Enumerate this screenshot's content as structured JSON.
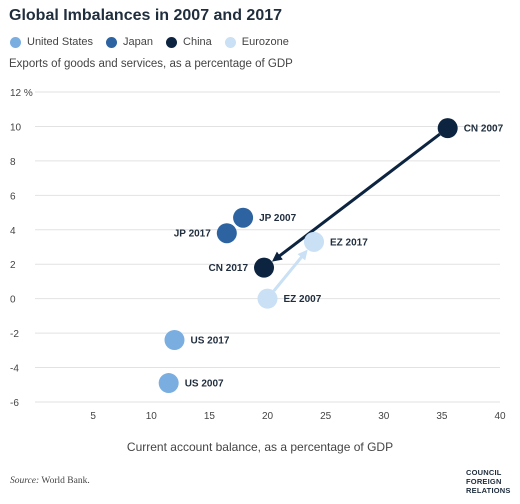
{
  "title": "Global Imbalances in 2007 and 2017",
  "subtitle": "Exports of goods and services, as a percentage of GDP",
  "source_label": "Source:",
  "source_text": " World Bank.",
  "logo_lines": [
    "COUNCIL",
    "FOREIGN",
    "RELATIONS"
  ],
  "legend": [
    {
      "label": "United States",
      "color": "#7aaee0"
    },
    {
      "label": "Japan",
      "color": "#2c63a0"
    },
    {
      "label": "China",
      "color": "#0d2440"
    },
    {
      "label": "Eurozone",
      "color": "#c9e0f5"
    }
  ],
  "chart_data": {
    "type": "scatter",
    "title": "Global Imbalances in 2007 and 2017",
    "subtitle": "Exports of goods and services, as a percentage of GDP",
    "xlabel": "Current account balance, as a percentage of GDP",
    "ylabel": "",
    "xlim": [
      0,
      40
    ],
    "ylim": [
      -6,
      12
    ],
    "x_ticks": [
      5,
      10,
      15,
      20,
      25,
      30,
      35,
      40
    ],
    "y_ticks": [
      12,
      10,
      8,
      6,
      4,
      2,
      0,
      -2,
      -4,
      -6
    ],
    "y_top_unit": "%",
    "grid": "horizontal",
    "legend_position": "top-left",
    "points": [
      {
        "label": "CN 2007",
        "series": "China",
        "x": 35.5,
        "y": 9.9,
        "color": "#0d2440",
        "label_side": "right"
      },
      {
        "label": "CN 2017",
        "series": "China",
        "x": 19.7,
        "y": 1.8,
        "color": "#0d2440",
        "label_side": "left"
      },
      {
        "label": "JP 2007",
        "series": "Japan",
        "x": 17.9,
        "y": 4.7,
        "color": "#2c63a0",
        "label_side": "right"
      },
      {
        "label": "JP 2017",
        "series": "Japan",
        "x": 16.5,
        "y": 3.8,
        "color": "#2c63a0",
        "label_side": "left"
      },
      {
        "label": "EZ 2007",
        "series": "Eurozone",
        "x": 20.0,
        "y": 0.0,
        "color": "#c9e0f5",
        "label_side": "right"
      },
      {
        "label": "EZ 2017",
        "series": "Eurozone",
        "x": 24.0,
        "y": 3.3,
        "color": "#c9e0f5",
        "label_side": "right"
      },
      {
        "label": "US 2017",
        "series": "United States",
        "x": 12.0,
        "y": -2.4,
        "color": "#7aaee0",
        "label_side": "right"
      },
      {
        "label": "US 2007",
        "series": "United States",
        "x": 11.5,
        "y": -4.9,
        "color": "#7aaee0",
        "label_side": "right"
      }
    ],
    "arrows": [
      {
        "from": [
          35.5,
          9.9
        ],
        "to": [
          19.7,
          1.8
        ],
        "color": "#0d2440"
      },
      {
        "from": [
          20.0,
          0.0
        ],
        "to": [
          24.0,
          3.3
        ],
        "color": "#c9e0f5"
      }
    ]
  }
}
